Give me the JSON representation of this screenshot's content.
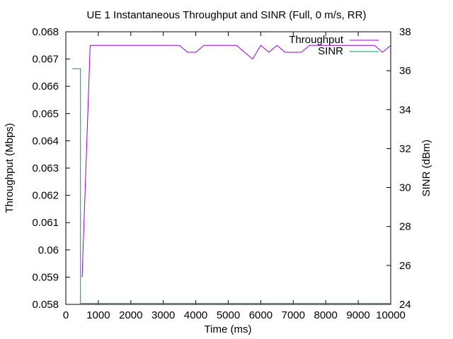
{
  "chart_data": {
    "type": "line",
    "title": "UE 1 Instantaneous Throughput and SINR (Full, 0 m/s, RR)",
    "xlabel": "Time (ms)",
    "ylabel": "Throughput (Mbps)",
    "y2label": "SINR (dBm)",
    "xlim": [
      0,
      10000
    ],
    "ylim": [
      0.058,
      0.068
    ],
    "y2lim": [
      24,
      38
    ],
    "x_ticks": [
      "0",
      "1000",
      "2000",
      "3000",
      "4000",
      "5000",
      "6000",
      "7000",
      "8000",
      "9000",
      "10000"
    ],
    "y_ticks": [
      "0.058",
      "0.059",
      "0.06",
      "0.061",
      "0.062",
      "0.063",
      "0.064",
      "0.065",
      "0.066",
      "0.067",
      "0.068"
    ],
    "y2_ticks": [
      "24",
      "26",
      "28",
      "30",
      "32",
      "34",
      "36",
      "38"
    ],
    "grid": false,
    "legend_position": "top-right",
    "series": [
      {
        "name": "Throughput",
        "axis": "left",
        "color": "#9400d3",
        "points": [
          [
            500,
            0.059
          ],
          [
            750,
            0.0675
          ],
          [
            1000,
            0.0675
          ],
          [
            1500,
            0.0675
          ],
          [
            2000,
            0.0675
          ],
          [
            2500,
            0.0675
          ],
          [
            3000,
            0.0675
          ],
          [
            3500,
            0.0675
          ],
          [
            3750,
            0.06725
          ],
          [
            4000,
            0.06725
          ],
          [
            4250,
            0.0675
          ],
          [
            4500,
            0.0675
          ],
          [
            5000,
            0.0675
          ],
          [
            5250,
            0.0675
          ],
          [
            5500,
            0.06725
          ],
          [
            5750,
            0.067
          ],
          [
            6000,
            0.0675
          ],
          [
            6250,
            0.06725
          ],
          [
            6500,
            0.0675
          ],
          [
            6750,
            0.06725
          ],
          [
            7000,
            0.06725
          ],
          [
            7250,
            0.06725
          ],
          [
            7500,
            0.0675
          ],
          [
            8000,
            0.0675
          ],
          [
            8500,
            0.0675
          ],
          [
            9000,
            0.0675
          ],
          [
            9250,
            0.0675
          ],
          [
            9500,
            0.0675
          ],
          [
            9750,
            0.06725
          ],
          [
            10000,
            0.0675
          ]
        ]
      },
      {
        "name": "SINR",
        "axis": "right",
        "color": "#009e73",
        "points": [
          [
            200,
            36.1
          ],
          [
            450,
            36.1
          ],
          [
            450,
            24.05
          ],
          [
            10000,
            24.05
          ]
        ]
      }
    ]
  }
}
